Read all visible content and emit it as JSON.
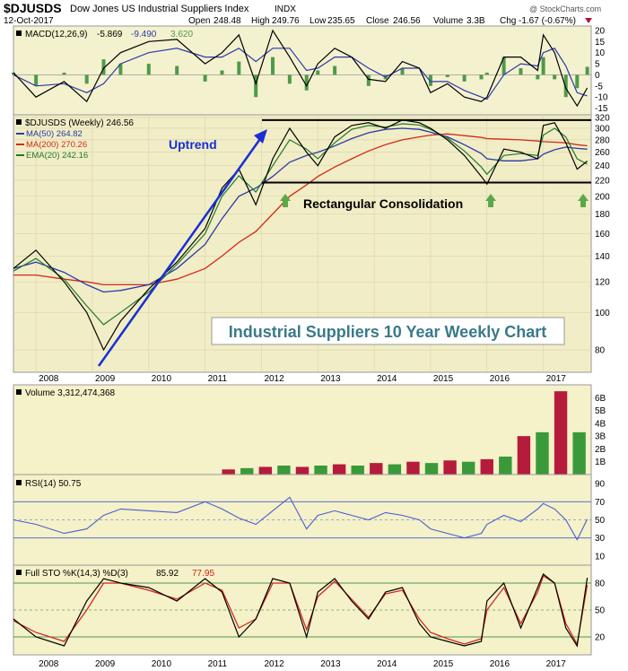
{
  "header": {
    "symbol": "$DJUSDS",
    "name": "Dow Jones US Industrial Suppliers Index",
    "exchange": "INDX",
    "date": "12-Oct-2017",
    "copyright": "@ StockCharts.com",
    "open_label": "Open",
    "open": "248.48",
    "high_label": "High",
    "high": "249.76",
    "low_label": "Low",
    "low": "235.65",
    "close_label": "Close",
    "close": "246.56",
    "volume_label": "Volume",
    "volume": "3.3B",
    "chg_label": "Chg",
    "chg": "-1.67 (-0.67%)"
  },
  "colors": {
    "panel_bg": "#f5f1c8",
    "price_bg": "#f2eec4",
    "ma50": "#2c3aa8",
    "ma200": "#d12a1a",
    "ema20": "#1e7a2a",
    "macd_hist": "#4e9a4a",
    "uptrend": "#1a2fd6",
    "volume_up": "#3a9a3a",
    "volume_down": "#b51c3c",
    "rsi_line": "#4a5ed0",
    "sto_k": "#000000",
    "sto_d": "#d1201a",
    "annotation_text": "#3a7a8a",
    "arrow": "#5aa84a"
  },
  "macd": {
    "label": "MACD(12,26,9)",
    "value1": "-5.869",
    "value2": "-9.490",
    "value3": "3.620",
    "ticks": [
      "20",
      "15",
      "10",
      "5",
      "0",
      "-5",
      "-10",
      "-15"
    ],
    "tick_values": [
      20,
      15,
      10,
      5,
      0,
      -5,
      -10,
      -15
    ]
  },
  "price": {
    "legend_title": "$DJUSDS (Weekly) 246.56",
    "ma50_label": "MA(50) 264.82",
    "ma200_label": "MA(200) 270.26",
    "ema20_label": "EMA(20) 242.16",
    "annotation_uptrend": "Uptrend",
    "annotation_consolidation": "Rectangular Consolidation",
    "chart_title": "Industrial Suppliers 10 Year Weekly Chart",
    "ticks": [
      "320",
      "300",
      "280",
      "260",
      "240",
      "220",
      "200",
      "180",
      "160",
      "140",
      "120",
      "100",
      "80"
    ],
    "tick_values": [
      320,
      300,
      280,
      260,
      240,
      220,
      200,
      180,
      160,
      140,
      120,
      100,
      80
    ]
  },
  "volume": {
    "label": "Volume 3,312,474,368",
    "ticks": [
      "6B",
      "5B",
      "4B",
      "3B",
      "2B",
      "1B"
    ],
    "tick_values": [
      6,
      5,
      4,
      3,
      2,
      1
    ]
  },
  "rsi": {
    "label": "RSI(14) 50.75",
    "ticks": [
      "90",
      "70",
      "50",
      "30",
      "10"
    ],
    "tick_values": [
      90,
      70,
      50,
      30,
      10
    ]
  },
  "sto": {
    "label_prefix": "Full STO %K(14,3) %D(3)",
    "k_value": "85.92",
    "d_value": "77.95",
    "ticks": [
      "80",
      "50",
      "20"
    ],
    "tick_values": [
      80,
      50,
      20
    ]
  },
  "x_axis": {
    "years": [
      "2008",
      "2009",
      "2010",
      "2011",
      "2012",
      "2013",
      "2014",
      "2015",
      "2016",
      "2017"
    ],
    "year_values": [
      2008,
      2009,
      2010,
      2011,
      2012,
      2013,
      2014,
      2015,
      2016,
      2017
    ]
  },
  "chart_data": {
    "type": "line",
    "title": "",
    "x": [
      2007.6,
      2008.0,
      2008.5,
      2008.9,
      2009.2,
      2009.5,
      2010.0,
      2010.5,
      2011.0,
      2011.3,
      2011.6,
      2011.9,
      2012.2,
      2012.5,
      2012.8,
      2013.0,
      2013.3,
      2013.6,
      2013.9,
      2014.2,
      2014.5,
      2014.8,
      2015.0,
      2015.3,
      2015.6,
      2015.9,
      2016.0,
      2016.3,
      2016.6,
      2016.9,
      2017.0,
      2017.2,
      2017.4,
      2017.6,
      2017.78
    ],
    "series": [
      {
        "name": "$DJUSDS (Weekly)",
        "values": [
          130,
          145,
          120,
          100,
          80,
          95,
          115,
          135,
          165,
          210,
          235,
          190,
          250,
          300,
          260,
          240,
          285,
          305,
          310,
          300,
          315,
          310,
          300,
          280,
          255,
          225,
          215,
          265,
          260,
          250,
          305,
          310,
          275,
          235,
          246.56
        ]
      },
      {
        "name": "MA(50)",
        "values": [
          130,
          135,
          127,
          118,
          113,
          114,
          118,
          130,
          150,
          175,
          200,
          210,
          225,
          245,
          255,
          260,
          270,
          282,
          292,
          298,
          300,
          298,
          293,
          285,
          272,
          258,
          250,
          247,
          247,
          250,
          257,
          264,
          268,
          266,
          264.82
        ]
      },
      {
        "name": "MA(200)",
        "values": [
          125,
          125,
          122,
          120,
          118,
          118,
          118,
          122,
          130,
          140,
          152,
          162,
          180,
          200,
          214,
          225,
          238,
          250,
          262,
          272,
          280,
          285,
          288,
          290,
          287,
          284,
          282,
          281,
          280,
          278,
          277,
          276,
          275,
          272,
          270.26
        ]
      },
      {
        "name": "EMA(20)",
        "values": [
          128,
          138,
          122,
          104,
          93,
          100,
          113,
          133,
          160,
          200,
          226,
          205,
          240,
          280,
          265,
          250,
          275,
          298,
          305,
          302,
          308,
          306,
          298,
          283,
          262,
          238,
          228,
          255,
          258,
          255,
          288,
          300,
          285,
          250,
          242.16
        ]
      }
    ],
    "ylim": [
      70,
      325
    ],
    "xlim": [
      2007.6,
      2017.85
    ],
    "macd": {
      "values": [
        1,
        -10,
        -3,
        -12,
        3,
        10,
        15,
        16,
        5,
        10,
        18,
        -4,
        20,
        8,
        -5,
        5,
        12,
        8,
        -2,
        -3,
        6,
        3,
        -8,
        -4,
        -10,
        -12,
        -10,
        8,
        8,
        2,
        18,
        10,
        -6,
        -14,
        -5.869
      ],
      "signal": [
        0,
        -5,
        -4,
        -8,
        -4,
        5,
        10,
        12,
        8,
        8,
        12,
        6,
        12,
        12,
        2,
        3,
        8,
        8,
        3,
        -1,
        3,
        3,
        -3,
        -3,
        -7,
        -10,
        -11,
        0,
        5,
        4,
        10,
        12,
        4,
        -8,
        -9.49
      ]
    },
    "rsi": {
      "values": [
        50,
        45,
        35,
        40,
        55,
        62,
        60,
        58,
        70,
        62,
        52,
        45,
        60,
        75,
        40,
        55,
        60,
        55,
        50,
        58,
        55,
        50,
        40,
        35,
        30,
        35,
        45,
        55,
        48,
        62,
        68,
        62,
        50,
        28,
        50.75
      ]
    },
    "sto": {
      "k": [
        40,
        20,
        10,
        60,
        85,
        80,
        75,
        60,
        85,
        70,
        20,
        40,
        85,
        80,
        20,
        70,
        85,
        60,
        40,
        70,
        75,
        35,
        20,
        15,
        10,
        15,
        60,
        80,
        30,
        75,
        90,
        80,
        30,
        10,
        85.92
      ],
      "d": [
        38,
        25,
        15,
        50,
        80,
        80,
        72,
        62,
        80,
        72,
        30,
        40,
        80,
        80,
        28,
        65,
        82,
        62,
        42,
        68,
        72,
        40,
        25,
        18,
        12,
        18,
        50,
        75,
        35,
        70,
        88,
        80,
        35,
        12,
        77.95
      ]
    },
    "volume": {
      "start_year": 2011.3,
      "values": [
        0.4,
        0.5,
        0.6,
        0.7,
        0.6,
        0.7,
        0.8,
        0.7,
        0.9,
        0.8,
        1.0,
        0.9,
        1.1,
        1.0,
        1.2,
        1.4,
        3.0,
        3.3,
        6.5,
        3.3
      ]
    }
  }
}
